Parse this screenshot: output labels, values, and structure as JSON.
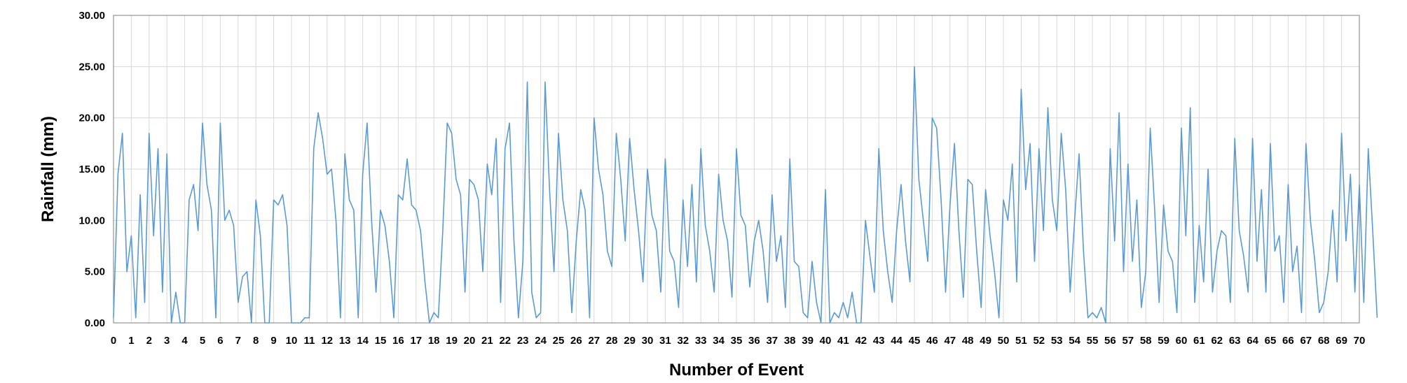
{
  "chart_data": {
    "type": "line",
    "title": "",
    "xlabel": "Number of Event",
    "ylabel": "Rainfall (mm)",
    "xlim": [
      0,
      70
    ],
    "ylim": [
      0,
      30
    ],
    "x_ticks": [
      "0",
      "1",
      "2",
      "3",
      "4",
      "5",
      "6",
      "7",
      "8",
      "9",
      "10",
      "11",
      "12",
      "13",
      "14",
      "15",
      "16",
      "17",
      "18",
      "19",
      "20",
      "21",
      "22",
      "23",
      "24",
      "25",
      "26",
      "27",
      "28",
      "29",
      "30",
      "31",
      "32",
      "33",
      "34",
      "35",
      "36",
      "37",
      "38",
      "39",
      "40",
      "41",
      "42",
      "43",
      "44",
      "45",
      "46",
      "47",
      "48",
      "49",
      "50",
      "51",
      "52",
      "53",
      "54",
      "55",
      "56",
      "57",
      "58",
      "59",
      "60",
      "61",
      "62",
      "63",
      "64",
      "65",
      "66",
      "67",
      "68",
      "69",
      "70"
    ],
    "y_ticks": [
      "0.00",
      "5.00",
      "10.00",
      "15.00",
      "20.00",
      "25.00",
      "30.00"
    ],
    "grid": true,
    "legend": "none",
    "line_color": "#5b9bd5",
    "sampling": "approximate reconstruction: 4 samples per event unit",
    "x_step": 0.25,
    "x_start": 0,
    "series": [
      {
        "values": [
          0.5,
          14.5,
          18.5,
          5.0,
          8.5,
          0.5,
          12.5,
          2.0,
          18.5,
          8.5,
          17.0,
          3.0,
          16.5,
          0.0,
          3.0,
          0.0,
          0.0,
          12.0,
          13.5,
          9.0,
          19.5,
          13.5,
          11.0,
          0.5,
          19.5,
          10.0,
          11.0,
          9.5,
          2.0,
          4.5,
          5.0,
          0.0,
          12.0,
          8.5,
          0.0,
          0.0,
          12.0,
          11.5,
          12.5,
          9.5,
          0.0,
          0.0,
          0.0,
          0.5,
          0.5,
          17.0,
          20.5,
          18.0,
          14.5,
          15.0,
          10.0,
          0.5,
          16.5,
          12.0,
          11.0,
          0.5,
          14.5,
          19.5,
          10.0,
          3.0,
          11.0,
          9.5,
          6.0,
          0.5,
          12.5,
          12.0,
          16.0,
          11.5,
          11.0,
          9.0,
          4.0,
          0.0,
          1.0,
          0.5,
          9.0,
          19.5,
          18.5,
          14.0,
          12.5,
          3.0,
          14.0,
          13.5,
          12.0,
          5.0,
          15.5,
          12.5,
          18.0,
          2.0,
          17.0,
          19.5,
          8.0,
          0.5,
          6.0,
          23.5,
          3.0,
          0.5,
          1.0,
          23.5,
          13.0,
          5.0,
          18.5,
          12.0,
          9.0,
          1.0,
          8.0,
          13.0,
          11.0,
          0.5,
          20.0,
          15.0,
          12.5,
          7.0,
          5.5,
          18.5,
          14.0,
          8.0,
          18.0,
          13.0,
          9.0,
          4.0,
          15.0,
          10.5,
          9.0,
          3.0,
          16.0,
          7.0,
          6.0,
          1.5,
          12.0,
          5.5,
          13.5,
          4.0,
          17.0,
          9.5,
          7.0,
          3.0,
          14.5,
          10.0,
          8.0,
          2.5,
          17.0,
          10.5,
          9.5,
          3.5,
          8.0,
          10.0,
          7.0,
          2.0,
          12.5,
          6.0,
          8.5,
          1.5,
          16.0,
          6.0,
          5.5,
          1.0,
          0.5,
          6.0,
          2.0,
          0.0,
          13.0,
          0.0,
          1.0,
          0.5,
          2.0,
          0.5,
          3.0,
          0.0,
          0.0,
          10.0,
          6.5,
          3.0,
          17.0,
          9.0,
          5.0,
          2.0,
          9.0,
          13.5,
          8.0,
          4.0,
          25.0,
          14.0,
          10.0,
          6.0,
          20.0,
          19.0,
          12.0,
          3.0,
          11.5,
          17.5,
          9.0,
          2.5,
          14.0,
          13.5,
          7.0,
          1.5,
          13.0,
          8.5,
          5.0,
          0.5,
          12.0,
          10.0,
          15.5,
          4.0,
          22.8,
          13.0,
          17.5,
          6.0,
          17.0,
          9.0,
          21.0,
          12.0,
          9.0,
          18.5,
          13.0,
          3.0,
          10.0,
          16.5,
          7.0,
          0.5,
          1.0,
          0.5,
          1.5,
          0.0,
          17.0,
          8.0,
          20.5,
          5.0,
          15.5,
          6.0,
          12.0,
          1.5,
          5.0,
          19.0,
          11.0,
          2.0,
          11.5,
          7.0,
          6.0,
          1.0,
          19.0,
          8.5,
          21.0,
          2.0,
          9.5,
          4.0,
          15.0,
          3.0,
          7.0,
          9.0,
          8.5,
          2.0,
          18.0,
          9.0,
          6.5,
          3.0,
          18.0,
          6.0,
          13.0,
          3.0,
          17.5,
          7.0,
          8.5,
          2.0,
          13.5,
          5.0,
          7.5,
          1.0,
          17.5,
          10.0,
          6.0,
          1.0,
          2.0,
          5.0,
          11.0,
          4.0,
          18.5,
          8.0,
          14.5,
          3.0,
          13.5,
          2.0,
          17.0,
          9.0,
          0.5
        ]
      }
    ]
  }
}
